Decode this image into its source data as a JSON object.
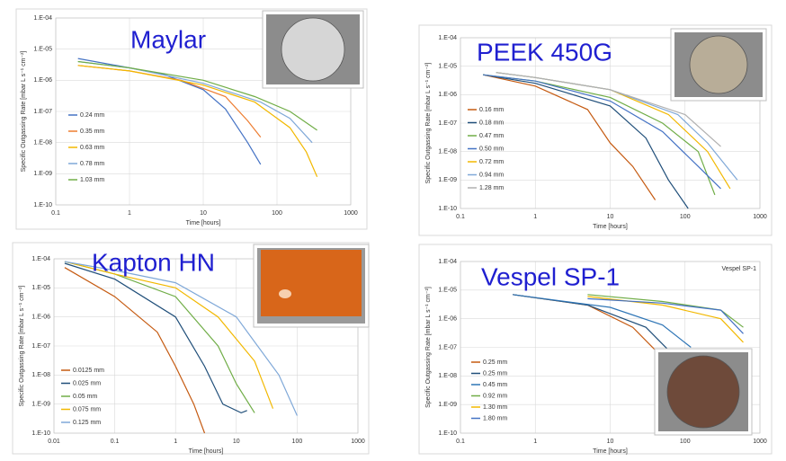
{
  "chart_data": [
    {
      "type": "line",
      "annotation": "Maylar",
      "xlabel": "Time [hours]",
      "ylabel": "Specific Outgassing Rate [mbar L s⁻¹ cm⁻²]",
      "log_x": true,
      "log_y": true,
      "grid": true,
      "legend": "left",
      "xlim": [
        0.1,
        1000
      ],
      "xticks": [
        0.1,
        1,
        10,
        100,
        1000
      ],
      "ylim": [
        1e-10,
        0.0001
      ],
      "yticks": [
        {
          "value": 0.0001,
          "label": "1.E-04"
        },
        {
          "value": 1e-05,
          "label": "1.E-05"
        },
        {
          "value": 1e-06,
          "label": "1.E-06"
        },
        {
          "value": 1e-07,
          "label": "1.E-07"
        },
        {
          "value": 1e-08,
          "label": "1.E-08"
        },
        {
          "value": 1e-09,
          "label": "1.E-09"
        },
        {
          "value": 1e-10,
          "label": "1.E-10"
        }
      ],
      "series": [
        {
          "name": "0.24 mm",
          "color": "#4472c4",
          "x": [
            0.2,
            1,
            3,
            10,
            20,
            40,
            60
          ],
          "values": [
            5e-06,
            2.5e-06,
            1.5e-06,
            5e-07,
            1.2e-07,
            1e-08,
            2e-09
          ]
        },
        {
          "name": "0.35 mm",
          "color": "#ed7d31",
          "x": [
            0.2,
            1,
            5,
            20,
            40,
            60
          ],
          "values": [
            3e-06,
            2e-06,
            1e-06,
            3e-07,
            5e-08,
            1.5e-08
          ]
        },
        {
          "name": "0.63 mm",
          "color": "#f2b800",
          "x": [
            0.2,
            1,
            10,
            50,
            150,
            250,
            350
          ],
          "values": [
            3e-06,
            2e-06,
            7e-07,
            2e-07,
            3e-08,
            5e-09,
            8e-10
          ]
        },
        {
          "name": "0.78 mm",
          "color": "#7fa8d8",
          "x": [
            0.2,
            1,
            10,
            60,
            150,
            300
          ],
          "values": [
            4e-06,
            2.5e-06,
            8e-07,
            2e-07,
            6e-08,
            1e-08
          ]
        },
        {
          "name": "1.03 mm",
          "color": "#70ad47",
          "x": [
            0.2,
            1,
            10,
            50,
            150,
            350
          ],
          "values": [
            4e-06,
            2.5e-06,
            1e-06,
            3e-07,
            1e-07,
            2.5e-08
          ]
        }
      ]
    },
    {
      "type": "line",
      "annotation": "PEEK 450G",
      "xlabel": "Time [hours]",
      "ylabel": "Specific Outgassing Rate [mbar L s⁻¹ cm⁻²]",
      "log_x": true,
      "log_y": true,
      "grid": true,
      "legend": "left",
      "xlim": [
        0.1,
        1000
      ],
      "xticks": [
        0.1,
        1,
        10,
        100,
        1000
      ],
      "ylim": [
        1e-10,
        0.0001
      ],
      "yticks": [
        {
          "value": 0.0001,
          "label": "1.E-04"
        },
        {
          "value": 1e-05,
          "label": "1.E-05"
        },
        {
          "value": 1e-06,
          "label": "1.E-06"
        },
        {
          "value": 1e-07,
          "label": "1.E-07"
        },
        {
          "value": 1e-08,
          "label": "1.E-08"
        },
        {
          "value": 1e-09,
          "label": "1.E-09"
        },
        {
          "value": 1e-10,
          "label": "1.E-10"
        }
      ],
      "series": [
        {
          "name": "0.16 mm",
          "color": "#c55a11",
          "x": [
            0.2,
            1,
            5,
            10,
            20,
            40
          ],
          "values": [
            5e-06,
            2e-06,
            3e-07,
            2e-08,
            3e-09,
            2e-10
          ]
        },
        {
          "name": "0.18 mm",
          "color": "#1f4e79",
          "x": [
            0.2,
            1,
            10,
            30,
            60,
            110
          ],
          "values": [
            5e-06,
            2.5e-06,
            4e-07,
            3e-08,
            1e-09,
            1e-10
          ]
        },
        {
          "name": "0.47 mm",
          "color": "#70ad47",
          "x": [
            0.2,
            1,
            10,
            50,
            150,
            250
          ],
          "values": [
            5e-06,
            3e-06,
            8e-07,
            1e-07,
            1e-08,
            3e-10
          ]
        },
        {
          "name": "0.50 mm",
          "color": "#4472c4",
          "x": [
            0.2,
            1,
            10,
            50,
            150,
            300
          ],
          "values": [
            5e-06,
            3e-06,
            6e-07,
            5e-08,
            3e-09,
            5e-10
          ]
        },
        {
          "name": "0.72 mm",
          "color": "#f2b800",
          "x": [
            0.3,
            1,
            10,
            60,
            200,
            400
          ],
          "values": [
            6e-06,
            4e-06,
            1.5e-06,
            2e-07,
            1e-08,
            5e-10
          ]
        },
        {
          "name": "0.94 mm",
          "color": "#7fa8d8",
          "x": [
            0.3,
            1,
            10,
            80,
            200,
            500
          ],
          "values": [
            6e-06,
            4e-06,
            1.5e-06,
            2e-07,
            2e-08,
            1e-09
          ]
        },
        {
          "name": "1.28 mm",
          "color": "#b0b0b0",
          "x": [
            0.3,
            1,
            10,
            100,
            300
          ],
          "values": [
            6e-06,
            4e-06,
            1.5e-06,
            2e-07,
            1.5e-08
          ]
        }
      ]
    },
    {
      "type": "line",
      "annotation": "Kapton HN",
      "xlabel": "Time [hours]",
      "ylabel": "Specific Outgassing Rate [mbar L s⁻¹ cm⁻²]",
      "log_x": true,
      "log_y": true,
      "grid": true,
      "legend": "left",
      "xlim": [
        0.01,
        1000
      ],
      "xticks": [
        0.01,
        0.1,
        1,
        10,
        100,
        1000
      ],
      "ylim": [
        1e-10,
        0.0001
      ],
      "yticks": [
        {
          "value": 0.0001,
          "label": "1.E-04"
        },
        {
          "value": 1e-05,
          "label": "1.E-05"
        },
        {
          "value": 1e-06,
          "label": "1.E-06"
        },
        {
          "value": 1e-07,
          "label": "1.E-07"
        },
        {
          "value": 1e-08,
          "label": "1.E-08"
        },
        {
          "value": 1e-09,
          "label": "1.E-09"
        },
        {
          "value": 1e-10,
          "label": "1.E-10"
        }
      ],
      "series": [
        {
          "name": "0.0125 mm",
          "color": "#c55a11",
          "x": [
            0.015,
            0.1,
            0.5,
            1,
            2,
            3
          ],
          "values": [
            5e-05,
            5e-06,
            3e-07,
            2e-08,
            1e-09,
            1e-10
          ]
        },
        {
          "name": "0.025 mm",
          "color": "#1f4e79",
          "x": [
            0.015,
            0.1,
            1,
            3,
            6,
            12,
            15
          ],
          "values": [
            7e-05,
            2e-05,
            1e-06,
            2e-08,
            1e-09,
            5e-10,
            6e-10
          ]
        },
        {
          "name": "0.05 mm",
          "color": "#70ad47",
          "x": [
            0.015,
            0.1,
            1,
            5,
            10,
            20
          ],
          "values": [
            8e-05,
            3e-05,
            5e-06,
            1e-07,
            5e-09,
            5e-10
          ]
        },
        {
          "name": "0.075 mm",
          "color": "#f2b800",
          "x": [
            0.015,
            0.1,
            1,
            5,
            20,
            40
          ],
          "values": [
            8e-05,
            3e-05,
            1e-05,
            1e-06,
            3e-08,
            7e-10
          ]
        },
        {
          "name": "0.125 mm",
          "color": "#7fa8d8",
          "x": [
            0.015,
            0.1,
            1,
            10,
            50,
            100
          ],
          "values": [
            8e-05,
            4e-05,
            1.5e-05,
            1e-06,
            1e-08,
            4e-10
          ]
        }
      ]
    },
    {
      "type": "line",
      "annotation": "Vespel SP-1",
      "title": "Vespel SP-1",
      "xlabel": "Time [hours]",
      "ylabel": "Specific Outgassing Rate [mbar L s⁻¹ cm⁻²]",
      "log_x": true,
      "log_y": true,
      "grid": true,
      "legend": "left",
      "xlim": [
        0.1,
        1000
      ],
      "xticks": [
        0.1,
        1,
        10,
        100,
        1000
      ],
      "ylim": [
        1e-10,
        0.0001
      ],
      "yticks": [
        {
          "value": 0.0001,
          "label": "1.E-04"
        },
        {
          "value": 1e-05,
          "label": "1.E-05"
        },
        {
          "value": 1e-06,
          "label": "1.E-06"
        },
        {
          "value": 1e-07,
          "label": "1.E-07"
        },
        {
          "value": 1e-08,
          "label": "1.E-08"
        },
        {
          "value": 1e-09,
          "label": "1.E-09"
        },
        {
          "value": 1e-10,
          "label": "1.E-10"
        }
      ],
      "series": [
        {
          "name": "0.25 mm",
          "color": "#c55a11",
          "x": [
            0.5,
            5,
            20,
            40
          ],
          "values": [
            7e-06,
            3e-06,
            5e-07,
            8e-08
          ]
        },
        {
          "name": "0.25 mm",
          "color": "#1f4e79",
          "x": [
            0.5,
            5,
            30,
            60
          ],
          "values": [
            7e-06,
            3e-06,
            5e-07,
            8e-08
          ]
        },
        {
          "name": "0.45 mm",
          "color": "#2e75b6",
          "x": [
            0.5,
            10,
            50,
            120
          ],
          "values": [
            7e-06,
            2.5e-06,
            6e-07,
            1e-07
          ]
        },
        {
          "name": "0.92 mm",
          "color": "#70ad47",
          "x": [
            5,
            50,
            300,
            600
          ],
          "values": [
            7e-06,
            4e-06,
            2e-06,
            5e-07
          ]
        },
        {
          "name": "1.30 mm",
          "color": "#f2b800",
          "x": [
            5,
            50,
            300,
            600
          ],
          "values": [
            6e-06,
            3e-06,
            1e-06,
            1.5e-07
          ]
        },
        {
          "name": "1.80 mm",
          "color": "#4472c4",
          "x": [
            5,
            50,
            300,
            600
          ],
          "values": [
            5e-06,
            3.5e-06,
            2e-06,
            3e-07
          ]
        }
      ]
    }
  ]
}
